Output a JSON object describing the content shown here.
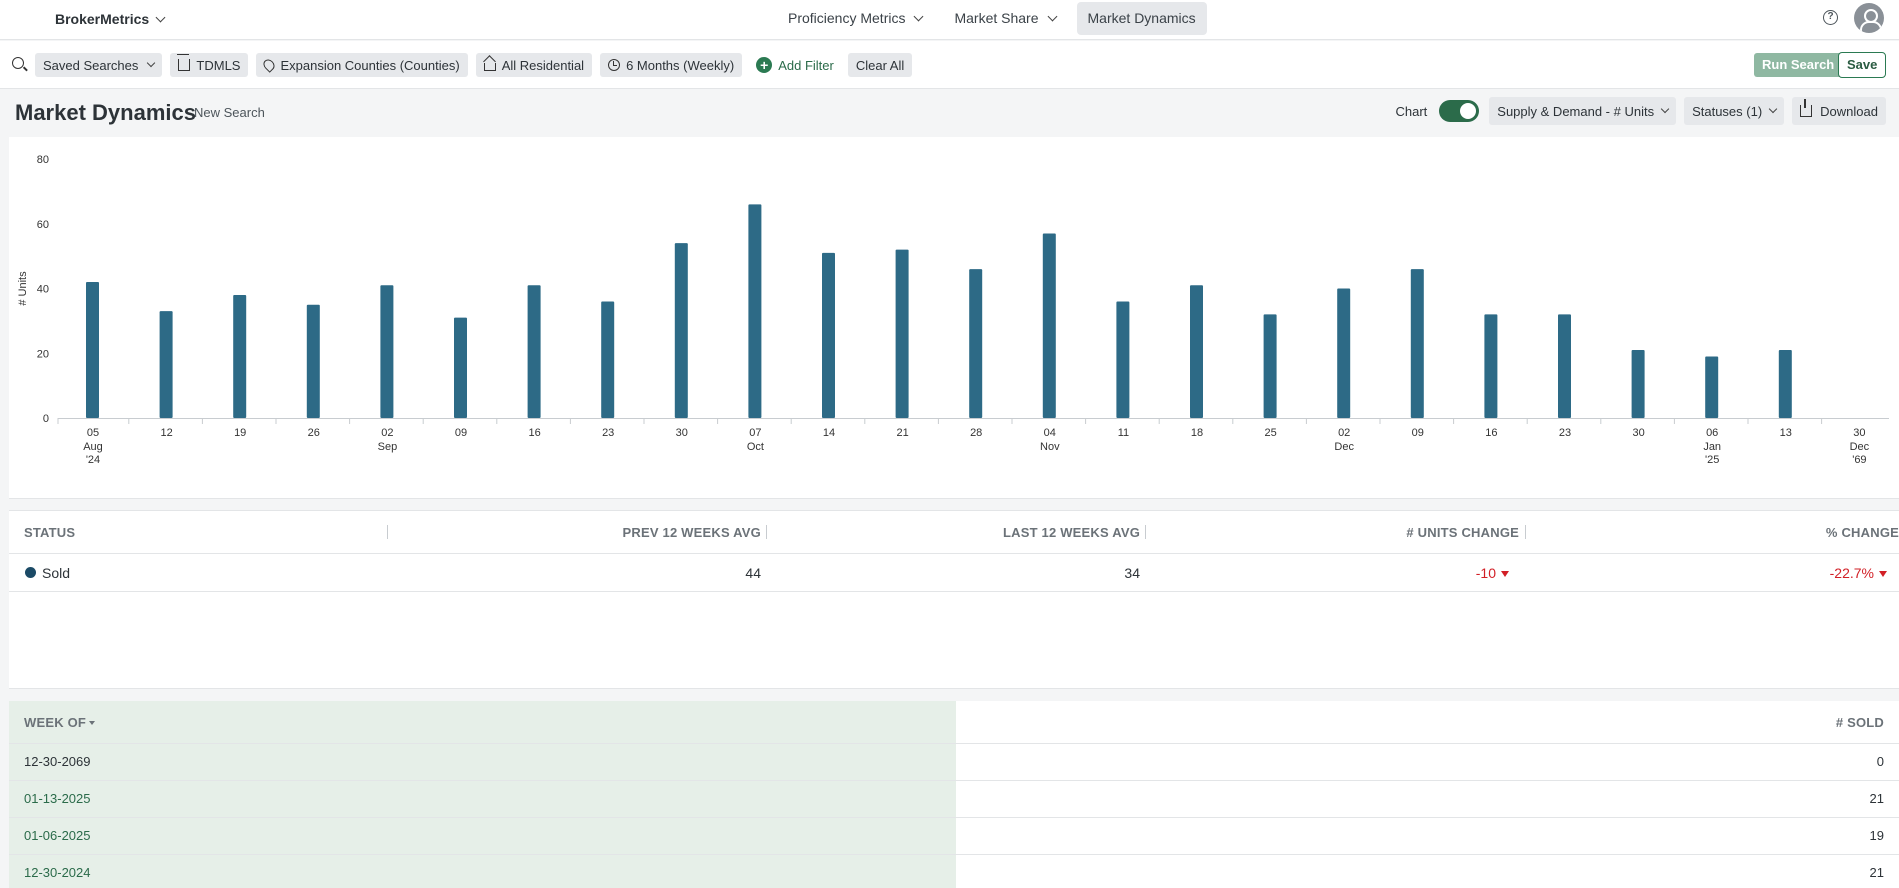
{
  "nav": {
    "brand": "BrokerMetrics",
    "tabs": [
      {
        "label": "Proficiency Metrics"
      },
      {
        "label": "Market Share"
      },
      {
        "label": "Market Dynamics"
      }
    ]
  },
  "filters": {
    "saved_searches": "Saved Searches",
    "chips": [
      {
        "label": "TDMLS",
        "icon": "building-icon"
      },
      {
        "label": "Expansion Counties (Counties)",
        "icon": "location-pin-icon"
      },
      {
        "label": "All Residential",
        "icon": "home-icon"
      },
      {
        "label": "6 Months (Weekly)",
        "icon": "clock-icon"
      }
    ],
    "add_filter": "Add Filter",
    "clear_all": "Clear All",
    "run_search": "Run Search",
    "save": "Save"
  },
  "header": {
    "title": "Market Dynamics",
    "new_search": "New Search",
    "chart_toggle_label": "Chart",
    "metric_select": "Supply & Demand - # Units",
    "statuses": "Statuses (1)",
    "download": "Download"
  },
  "colors": {
    "bar": "#2d6a86",
    "accent": "#2b6b4a",
    "negative": "#d21f26"
  },
  "chart_data": {
    "type": "bar",
    "ylabel": "# Units",
    "ylim": [
      0,
      80
    ],
    "yticks": [
      "0",
      "20",
      "40",
      "60",
      "80"
    ],
    "categories": [
      "05",
      "12",
      "19",
      "26",
      "02",
      "09",
      "16",
      "23",
      "30",
      "07",
      "14",
      "21",
      "28",
      "04",
      "11",
      "18",
      "25",
      "02",
      "09",
      "16",
      "23",
      "30",
      "06",
      "13",
      "30"
    ],
    "category_sublabels": [
      [
        "Aug",
        "'24"
      ],
      [],
      [],
      [],
      [
        "Sep"
      ],
      [],
      [],
      [],
      [],
      [
        "Oct"
      ],
      [],
      [],
      [],
      [
        "Nov"
      ],
      [],
      [],
      [],
      [
        "Dec"
      ],
      [],
      [],
      [],
      [],
      [
        "Jan",
        "'25"
      ],
      [],
      [
        "Dec",
        "'69"
      ]
    ],
    "series": [
      {
        "values": [
          42,
          33,
          38,
          35,
          41,
          31,
          41,
          36,
          54,
          66,
          51,
          52,
          46,
          57,
          36,
          41,
          32,
          40,
          46,
          32,
          32,
          21,
          19,
          21,
          0
        ]
      }
    ]
  },
  "summary": {
    "headers": [
      "STATUS",
      "PREV 12 WEEKS AVG",
      "LAST 12 WEEKS AVG",
      "# UNITS CHANGE",
      "% CHANGE"
    ],
    "rows": [
      {
        "status": "Sold",
        "prev": "44",
        "last": "34",
        "units_change": "-10",
        "pct_change": "-22.7%"
      }
    ]
  },
  "weekly": {
    "headers": [
      "WEEK OF",
      "# SOLD"
    ],
    "rows": [
      {
        "week": "12-30-2069",
        "sold": "0"
      },
      {
        "week": "01-13-2025",
        "sold": "21"
      },
      {
        "week": "01-06-2025",
        "sold": "19"
      },
      {
        "week": "12-30-2024",
        "sold": "21"
      }
    ]
  }
}
